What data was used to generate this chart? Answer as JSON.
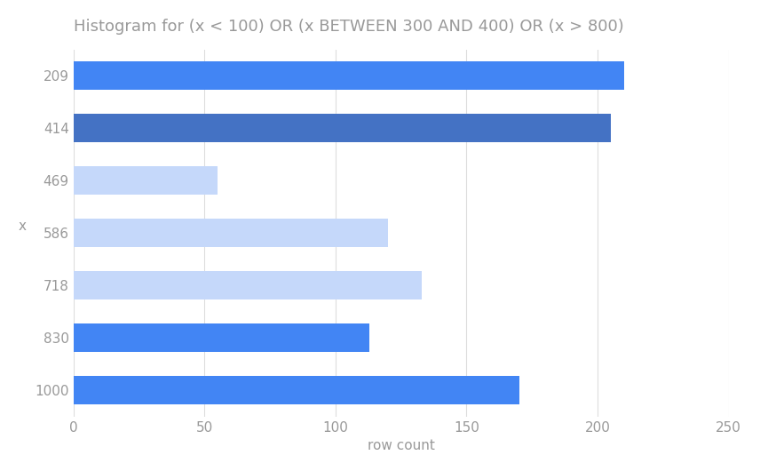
{
  "title": "Histogram for (x < 100) OR (x BETWEEN 300 AND 400) OR (x > 800)",
  "ylabel": "x",
  "xlabel": "row count",
  "categories": [
    "209",
    "414",
    "469",
    "586",
    "718",
    "830",
    "1000"
  ],
  "values": [
    210,
    205,
    55,
    120,
    133,
    113,
    170
  ],
  "bar_colors": [
    "#4285f4",
    "#4472c4",
    "#c5d8fa",
    "#c5d8fa",
    "#c5d8fa",
    "#4285f4",
    "#4285f4"
  ],
  "xlim": [
    0,
    250
  ],
  "xticks": [
    0,
    50,
    100,
    150,
    200,
    250
  ],
  "background_color": "#ffffff",
  "grid_color": "#dddddd",
  "title_color": "#999999",
  "label_color": "#999999",
  "tick_color": "#999999",
  "bar_height": 0.55,
  "title_fontsize": 13,
  "tick_fontsize": 11
}
